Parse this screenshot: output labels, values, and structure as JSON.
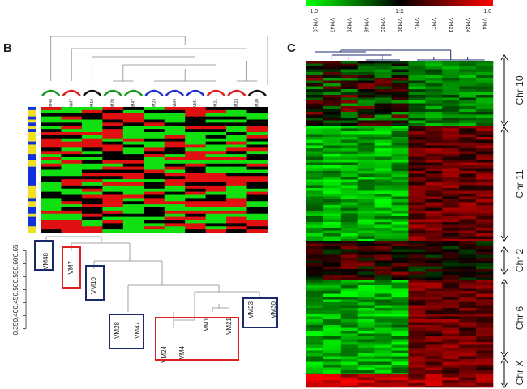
{
  "panel_b": {
    "label": "B",
    "top_samples": [
      "VM48",
      "VM7",
      "VM10",
      "VM28",
      "VM47",
      "VM24",
      "VM4",
      "VM1",
      "VM21",
      "VM23",
      "VM30"
    ],
    "dendrogram": {
      "ylim": [
        0.33,
        0.67
      ],
      "yticks": [
        0.65,
        {
          "value": 0.6,
          "label": "0.60"
        },
        0.55,
        {
          "value": 0.5,
          "label": "0.50"
        },
        0.45,
        {
          "value": 0.4,
          "label": "0.40"
        },
        0.35
      ],
      "leaves": [
        "VM48",
        "VM7",
        "VM10",
        "VM28",
        "VM47",
        "VM24",
        "VM4",
        "VM1",
        "VM21",
        "VM23",
        "VM30"
      ]
    }
  },
  "panel_c": {
    "label": "C",
    "scale_labels": [
      "-1.0",
      "1:1",
      "1.0"
    ],
    "samples": [
      "VM10",
      "VM47",
      "VM29",
      "VM48",
      "VM23",
      "VM30",
      "VM1",
      "VM7",
      "VM21",
      "VM24",
      "VM4"
    ],
    "chromosomes": [
      "Chr 10",
      "Chr 11",
      "Chr 2",
      "Chr 6",
      "Chr X"
    ]
  }
}
